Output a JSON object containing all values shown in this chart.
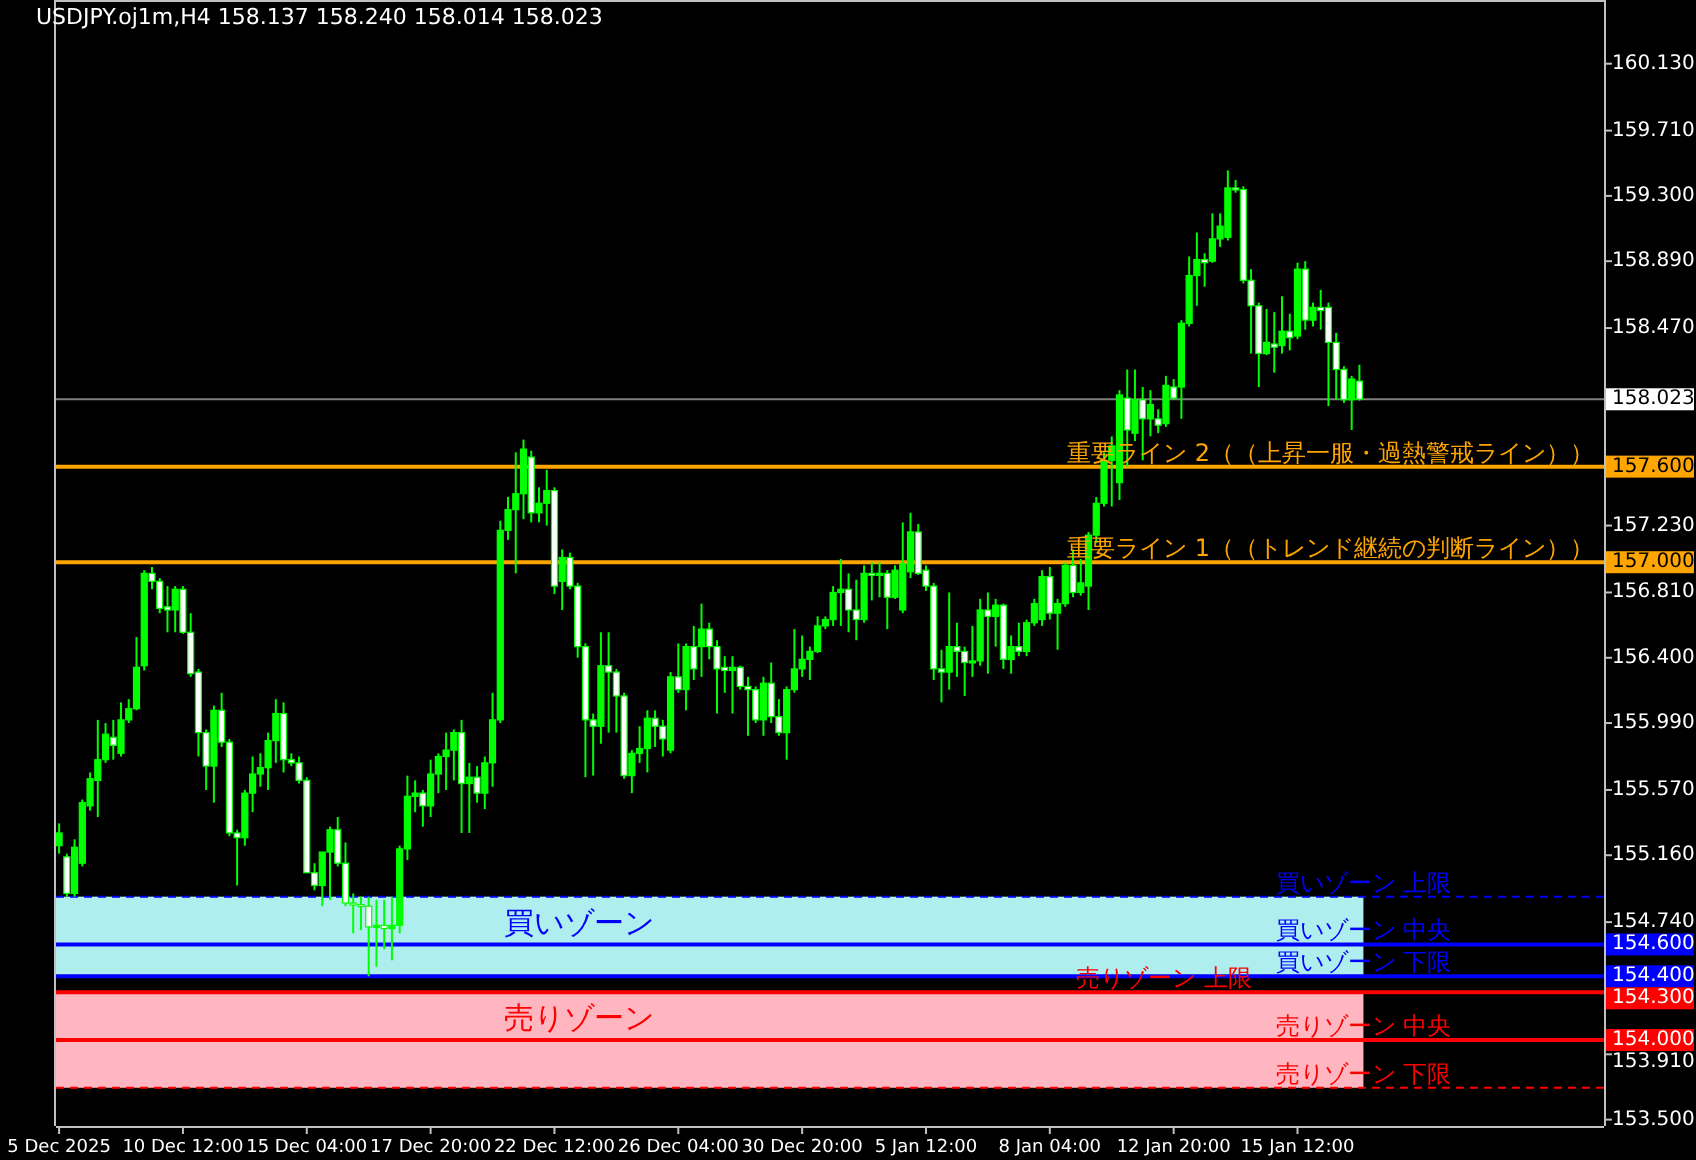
{
  "chart_data": {
    "type": "candlestick",
    "title": "USDJPY.oj1m,H4  158.137 158.240 158.014 158.023",
    "color": "#00ff00",
    "categories": [
      "5 Dec 2025",
      null,
      null,
      null,
      null,
      null,
      null,
      null,
      null,
      null,
      null,
      null,
      null,
      null,
      null,
      null,
      "10 Dec 12:00",
      null,
      null,
      null,
      null,
      null,
      null,
      null,
      null,
      null,
      null,
      null,
      null,
      null,
      null,
      null,
      "15 Dec 04:00",
      null,
      null,
      null,
      null,
      null,
      null,
      null,
      null,
      null,
      null,
      null,
      null,
      null,
      null,
      null,
      "17 Dec 20:00",
      null,
      null,
      null,
      null,
      null,
      null,
      null,
      null,
      null,
      null,
      null,
      null,
      null,
      null,
      null,
      "22 Dec 12:00",
      null,
      null,
      null,
      null,
      null,
      null,
      null,
      null,
      null,
      null,
      null,
      null,
      null,
      null,
      null,
      "26 Dec 04:00",
      null,
      null,
      null,
      null,
      null,
      null,
      null,
      null,
      null,
      null,
      null,
      null,
      null,
      null,
      null,
      "30 Dec 20:00",
      null,
      null,
      null,
      null,
      null,
      null,
      null,
      null,
      null,
      null,
      null,
      null,
      null,
      null,
      null,
      "5 Jan 12:00",
      null,
      null,
      null,
      null,
      null,
      null,
      null,
      null,
      null,
      null,
      null,
      null,
      null,
      null,
      null,
      "8 Jan 04:00",
      null,
      null,
      null,
      null,
      null,
      null,
      null,
      null,
      null,
      null,
      null,
      null,
      null,
      null,
      null,
      "12 Jan 20:00",
      null,
      null,
      null,
      null,
      null,
      null,
      null,
      null,
      null,
      null,
      null,
      null,
      null,
      null,
      null,
      "15 Jan 12:00",
      null,
      null,
      null,
      null,
      null,
      null,
      null,
      null,
      null,
      null,
      null,
      null,
      null,
      null,
      null,
      null,
      null,
      null,
      null,
      null,
      null,
      null,
      null,
      null,
      null,
      null,
      null,
      null,
      null,
      null,
      null,
      null,
      null,
      null,
      null,
      null,
      null,
      null,
      null
    ],
    "ohlc": [
      [
        155.22,
        155.36,
        155.17,
        155.3
      ],
      [
        155.15,
        155.17,
        154.9,
        154.92
      ],
      [
        154.92,
        155.26,
        154.9,
        155.21
      ],
      [
        155.11,
        155.51,
        155.09,
        155.49
      ],
      [
        155.47,
        155.68,
        155.44,
        155.64
      ],
      [
        155.63,
        156.01,
        155.4,
        155.76
      ],
      [
        155.76,
        155.99,
        155.74,
        155.92
      ],
      [
        155.9,
        156.01,
        155.76,
        155.85
      ],
      [
        155.8,
        156.12,
        155.78,
        156.01
      ],
      [
        156.01,
        156.14,
        155.99,
        156.08
      ],
      [
        156.08,
        156.53,
        156.07,
        156.34
      ],
      [
        156.35,
        156.95,
        156.32,
        156.93
      ],
      [
        156.93,
        156.97,
        156.83,
        156.88
      ],
      [
        156.88,
        156.9,
        156.68,
        156.71
      ],
      [
        156.72,
        156.85,
        156.56,
        156.7
      ],
      [
        156.7,
        156.85,
        156.56,
        156.83
      ],
      [
        156.83,
        156.85,
        156.55,
        156.56
      ],
      [
        156.56,
        156.68,
        156.28,
        156.3
      ],
      [
        156.31,
        156.33,
        155.78,
        155.93
      ],
      [
        155.93,
        155.95,
        155.57,
        155.72
      ],
      [
        155.72,
        156.1,
        155.49,
        156.07
      ],
      [
        156.07,
        156.18,
        155.84,
        155.87
      ],
      [
        155.87,
        155.89,
        155.28,
        155.3
      ],
      [
        155.3,
        155.32,
        154.97,
        155.27
      ],
      [
        155.27,
        155.57,
        155.22,
        155.55
      ],
      [
        155.55,
        155.78,
        155.43,
        155.67
      ],
      [
        155.67,
        155.8,
        155.59,
        155.71
      ],
      [
        155.71,
        155.93,
        155.57,
        155.88
      ],
      [
        155.88,
        156.14,
        155.74,
        156.05
      ],
      [
        156.05,
        156.12,
        155.68,
        155.76
      ],
      [
        155.76,
        155.8,
        155.72,
        155.74
      ],
      [
        155.74,
        155.78,
        155.61,
        155.63
      ],
      [
        155.63,
        155.65,
        155.05,
        155.05
      ],
      [
        155.05,
        155.11,
        154.94,
        154.97
      ],
      [
        154.97,
        155.18,
        154.84,
        155.18
      ],
      [
        155.18,
        155.34,
        154.88,
        155.32
      ],
      [
        155.32,
        155.4,
        155.09,
        155.11
      ],
      [
        155.11,
        155.24,
        154.84,
        154.86
      ],
      [
        154.86,
        154.92,
        154.67,
        154.85
      ],
      [
        154.85,
        154.9,
        154.69,
        154.84
      ],
      [
        154.84,
        154.9,
        154.4,
        154.71
      ],
      [
        154.71,
        154.88,
        154.46,
        154.72
      ],
      [
        154.72,
        154.88,
        154.57,
        154.7
      ],
      [
        154.7,
        154.9,
        154.5,
        154.72
      ],
      [
        154.72,
        155.22,
        154.67,
        155.2
      ],
      [
        155.2,
        155.66,
        155.13,
        155.53
      ],
      [
        155.53,
        155.63,
        155.43,
        155.55
      ],
      [
        155.55,
        155.57,
        155.34,
        155.47
      ],
      [
        155.47,
        155.76,
        155.4,
        155.67
      ],
      [
        155.67,
        155.8,
        155.55,
        155.78
      ],
      [
        155.78,
        155.93,
        155.57,
        155.82
      ],
      [
        155.82,
        155.95,
        155.63,
        155.93
      ],
      [
        155.93,
        156.01,
        155.3,
        155.61
      ],
      [
        155.61,
        155.74,
        155.3,
        155.65
      ],
      [
        155.65,
        155.72,
        155.49,
        155.55
      ],
      [
        155.55,
        155.78,
        155.45,
        155.74
      ],
      [
        155.74,
        156.18,
        155.59,
        156.01
      ],
      [
        156.01,
        157.26,
        155.99,
        157.2
      ],
      [
        157.2,
        157.41,
        157.14,
        157.33
      ],
      [
        157.33,
        157.69,
        156.93,
        157.43
      ],
      [
        157.43,
        157.77,
        157.27,
        157.71
      ],
      [
        157.66,
        157.7,
        157.25,
        157.31
      ],
      [
        157.31,
        157.47,
        157.25,
        157.37
      ],
      [
        157.37,
        157.58,
        157.23,
        157.45
      ],
      [
        157.45,
        157.47,
        156.8,
        156.85
      ],
      [
        156.88,
        157.08,
        156.7,
        157.03
      ],
      [
        157.03,
        157.06,
        156.83,
        156.85
      ],
      [
        156.85,
        156.87,
        156.4,
        156.47
      ],
      [
        156.47,
        156.49,
        155.65,
        156.01
      ],
      [
        156.01,
        156.05,
        155.66,
        155.97
      ],
      [
        155.97,
        156.56,
        155.86,
        156.35
      ],
      [
        156.35,
        156.56,
        155.93,
        156.31
      ],
      [
        156.31,
        156.33,
        155.93,
        156.16
      ],
      [
        156.16,
        156.18,
        155.64,
        155.66
      ],
      [
        155.66,
        155.82,
        155.55,
        155.8
      ],
      [
        155.8,
        155.97,
        155.74,
        155.83
      ],
      [
        155.83,
        156.07,
        155.68,
        156.02
      ],
      [
        156.02,
        156.07,
        155.84,
        155.97
      ],
      [
        155.97,
        156.01,
        155.78,
        155.89
      ],
      [
        155.82,
        156.31,
        155.8,
        156.28
      ],
      [
        156.28,
        156.49,
        156.18,
        156.2
      ],
      [
        156.2,
        156.49,
        156.07,
        156.47
      ],
      [
        156.47,
        156.6,
        156.26,
        156.33
      ],
      [
        156.47,
        156.74,
        156.28,
        156.58
      ],
      [
        156.58,
        156.62,
        156.39,
        156.47
      ],
      [
        156.47,
        156.51,
        156.05,
        156.33
      ],
      [
        156.34,
        156.41,
        156.18,
        156.32
      ],
      [
        156.32,
        156.41,
        156.05,
        156.34
      ],
      [
        156.34,
        156.35,
        156.2,
        156.22
      ],
      [
        156.22,
        156.28,
        155.91,
        156.2
      ],
      [
        156.2,
        156.22,
        155.99,
        156.01
      ],
      [
        156.01,
        156.28,
        155.91,
        156.24
      ],
      [
        156.24,
        156.37,
        155.99,
        156.03
      ],
      [
        156.03,
        156.14,
        155.91,
        155.93
      ],
      [
        155.93,
        156.22,
        155.76,
        156.2
      ],
      [
        156.2,
        156.58,
        156.18,
        156.33
      ],
      [
        156.33,
        156.54,
        156.28,
        156.39
      ],
      [
        156.39,
        156.47,
        156.26,
        156.44
      ],
      [
        156.44,
        156.66,
        156.43,
        156.6
      ],
      [
        156.6,
        156.66,
        156.58,
        156.64
      ],
      [
        156.64,
        156.85,
        156.6,
        156.81
      ],
      [
        156.81,
        157.02,
        156.6,
        156.83
      ],
      [
        156.83,
        156.93,
        156.56,
        156.7
      ],
      [
        156.7,
        156.89,
        156.51,
        156.64
      ],
      [
        156.64,
        156.98,
        156.62,
        156.93
      ],
      [
        156.93,
        157.0,
        156.76,
        156.92
      ],
      [
        156.92,
        157.0,
        156.78,
        156.93
      ],
      [
        156.93,
        156.95,
        156.58,
        156.78
      ],
      [
        156.78,
        156.98,
        156.77,
        156.95
      ],
      [
        156.7,
        157.25,
        156.68,
        156.99
      ],
      [
        156.94,
        157.31,
        156.9,
        157.19
      ],
      [
        157.19,
        157.24,
        156.92,
        156.93
      ],
      [
        156.95,
        156.98,
        156.82,
        156.85
      ],
      [
        156.85,
        156.87,
        156.26,
        156.33
      ],
      [
        156.33,
        156.45,
        156.12,
        156.31
      ],
      [
        156.31,
        156.81,
        156.2,
        156.47
      ],
      [
        156.47,
        156.62,
        156.28,
        156.44
      ],
      [
        156.44,
        156.47,
        156.16,
        156.37
      ],
      [
        156.37,
        156.6,
        156.28,
        156.38
      ],
      [
        156.38,
        156.77,
        156.35,
        156.7
      ],
      [
        156.7,
        156.81,
        156.3,
        156.66
      ],
      [
        156.66,
        156.77,
        156.47,
        156.73
      ],
      [
        156.73,
        156.74,
        156.33,
        156.39
      ],
      [
        156.39,
        156.54,
        156.3,
        156.47
      ],
      [
        156.47,
        156.62,
        156.41,
        156.44
      ],
      [
        156.44,
        156.64,
        156.41,
        156.62
      ],
      [
        156.62,
        156.77,
        156.6,
        156.74
      ],
      [
        156.64,
        156.95,
        156.6,
        156.91
      ],
      [
        156.91,
        156.97,
        156.64,
        156.68
      ],
      [
        156.68,
        156.77,
        156.45,
        156.74
      ],
      [
        156.74,
        157.0,
        156.72,
        156.98
      ],
      [
        156.98,
        157.08,
        156.78,
        156.81
      ],
      [
        156.81,
        157.02,
        156.79,
        156.87
      ],
      [
        156.85,
        157.19,
        156.7,
        157.17
      ],
      [
        157.17,
        157.41,
        157.12,
        157.37
      ],
      [
        157.37,
        157.69,
        157.35,
        157.64
      ],
      [
        157.64,
        157.79,
        157.35,
        157.73
      ],
      [
        157.5,
        158.08,
        157.39,
        158.05
      ],
      [
        158.03,
        158.21,
        157.6,
        157.83
      ],
      [
        157.81,
        158.21,
        157.76,
        158.02
      ],
      [
        158.02,
        158.1,
        157.64,
        157.9
      ],
      [
        157.9,
        158.08,
        157.79,
        157.99
      ],
      [
        157.9,
        157.96,
        157.81,
        157.86
      ],
      [
        157.87,
        158.17,
        157.85,
        158.11
      ],
      [
        158.1,
        158.15,
        158.02,
        158.03
      ],
      [
        158.1,
        158.52,
        157.9,
        158.5
      ],
      [
        158.5,
        158.92,
        158.48,
        158.8
      ],
      [
        158.8,
        159.07,
        158.61,
        158.9
      ],
      [
        158.9,
        158.94,
        158.73,
        158.88
      ],
      [
        158.89,
        159.19,
        158.88,
        159.03
      ],
      [
        159.03,
        159.19,
        158.98,
        159.11
      ],
      [
        159.04,
        159.46,
        159.02,
        159.35
      ],
      [
        159.35,
        159.4,
        159.32,
        159.34
      ],
      [
        159.34,
        159.36,
        158.75,
        158.77
      ],
      [
        158.77,
        158.84,
        158.31,
        158.61
      ],
      [
        158.61,
        158.63,
        158.1,
        158.31
      ],
      [
        158.31,
        158.59,
        158.3,
        158.38
      ],
      [
        158.37,
        158.57,
        158.19,
        158.35
      ],
      [
        158.36,
        158.67,
        158.31,
        158.45
      ],
      [
        158.45,
        158.56,
        158.33,
        158.41
      ],
      [
        158.42,
        158.88,
        158.4,
        158.84
      ],
      [
        158.84,
        158.89,
        158.46,
        158.52
      ],
      [
        158.52,
        158.63,
        158.48,
        158.6
      ],
      [
        158.6,
        158.71,
        158.46,
        158.58
      ],
      [
        158.6,
        158.63,
        157.98,
        158.38
      ],
      [
        158.38,
        158.44,
        158.02,
        158.21
      ],
      [
        158.21,
        158.23,
        158.0,
        158.02
      ],
      [
        158.02,
        158.17,
        157.83,
        158.15
      ],
      [
        158.137,
        158.24,
        158.014,
        158.023
      ],
      null,
      null,
      null,
      null,
      null,
      null,
      null,
      null,
      null,
      null,
      null,
      null,
      null,
      null,
      null,
      null,
      null,
      null,
      null,
      null,
      null,
      null,
      null,
      null,
      null,
      null,
      null,
      null,
      null,
      null,
      null
    ],
    "ylim": [
      153.46,
      160.53
    ],
    "yticks": [
      {
        "value": 160.13,
        "label": "160.130"
      },
      {
        "value": 159.71,
        "label": "159.710"
      },
      {
        "value": 159.3,
        "label": "159.300"
      },
      {
        "value": 158.89,
        "label": "158.890"
      },
      {
        "value": 158.47,
        "label": "158.470"
      },
      {
        "value": 158.023,
        "label": "158.023"
      },
      {
        "value": 157.6,
        "label": "157.600"
      },
      {
        "value": 157.23,
        "label": "157.230"
      },
      {
        "value": 157.0,
        "label": "157.000"
      },
      {
        "value": 156.81,
        "label": "156.810"
      },
      {
        "value": 156.4,
        "label": "156.400"
      },
      {
        "value": 155.99,
        "label": "155.990"
      },
      {
        "value": 155.57,
        "label": "155.570"
      },
      {
        "value": 155.16,
        "label": "155.160"
      },
      {
        "value": 154.74,
        "label": "154.740"
      },
      {
        "value": 154.6,
        "label": "154.600"
      },
      {
        "value": 154.4,
        "label": "154.400"
      },
      {
        "value": 154.3,
        "label": "154.300"
      },
      {
        "value": 154.0,
        "label": "154.000"
      },
      {
        "value": 153.91,
        "label": "153.910"
      },
      {
        "value": 153.5,
        "label": "153.500"
      }
    ],
    "bands": [
      {
        "axis": "y",
        "from": 154.4,
        "to": 154.9,
        "label": "買いゾーン",
        "color": "#afeeee"
      },
      {
        "axis": "y",
        "from": 153.7,
        "to": 154.3,
        "label": "売りゾーン",
        "color": "#ffb6c1"
      }
    ],
    "ref_lines": [
      {
        "axis": "y",
        "value": 158.023,
        "color": "#808080",
        "line_style": "solid"
      },
      {
        "axis": "y",
        "value": 157.6,
        "label": "重要ライン 2（（上昇一服・過熱警戒ライン））",
        "color": "#ffa500",
        "line_style": "solid"
      },
      {
        "axis": "y",
        "value": 157.0,
        "label": "重要ライン 1（（トレンド継続の判断ライン））",
        "color": "#ffa500",
        "line_style": "solid"
      },
      {
        "axis": "y",
        "value": 154.9,
        "label": "買いゾーン 上限",
        "color": "#0000ff",
        "line_style": "dashed"
      },
      {
        "axis": "y",
        "value": 154.6,
        "label": "買いゾーン 中央",
        "color": "#0000ff",
        "line_style": "solid"
      },
      {
        "axis": "y",
        "value": 154.4,
        "label": "買いゾーン 下限",
        "color": "#0000ff",
        "line_style": "solid"
      },
      {
        "axis": "y",
        "value": 154.3,
        "label": "売りゾーン 上限",
        "color": "#ff0000",
        "line_style": "solid"
      },
      {
        "axis": "y",
        "value": 154.0,
        "label": "売りゾーン 中央",
        "color": "#ff0000",
        "line_style": "solid"
      },
      {
        "axis": "y",
        "value": 153.7,
        "label": "売りゾーン 下限",
        "color": "#ff0000",
        "line_style": "dashed"
      }
    ]
  }
}
